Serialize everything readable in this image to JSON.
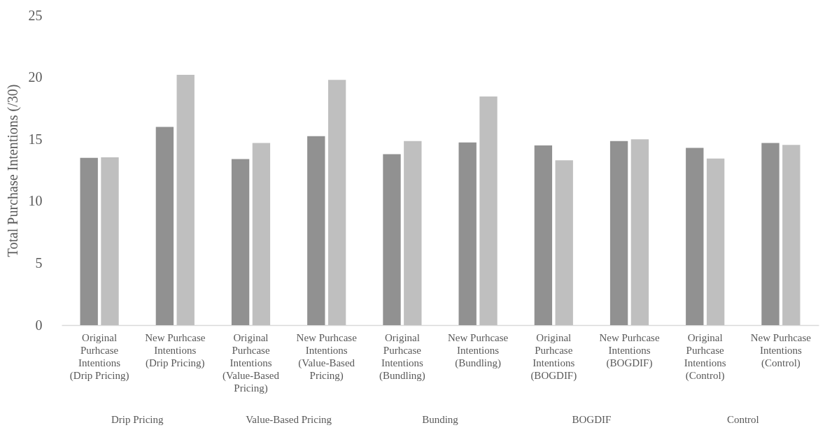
{
  "chart_data": {
    "type": "bar",
    "ylabel": "Total Purchase Intentions (/30)",
    "categories": [
      "Original Purhcase Intentions (Drip Pricing)",
      "New Purhcase Intentions (Drip Pricing)",
      "Original Purhcase Intentions (Value-Based Pricing)",
      "New Purhcase Intentions (Value-Based Pricing)",
      "Original Purhcase Intentions (Bundling)",
      "New Purhcase Intentions (Bundling)",
      "Original Purhcase Intentions (BOGDIF)",
      "New Purhcase Intentions (BOGDIF)",
      "Original Purhcase Intentions (Control)",
      "New Purhcase Intentions (Control)"
    ],
    "series": [
      {
        "color": "#919191",
        "values": [
          13.5,
          16.0,
          13.4,
          15.25,
          13.8,
          14.75,
          14.5,
          14.85,
          14.3,
          14.7
        ]
      },
      {
        "color": "#bfbfbf",
        "values": [
          13.55,
          20.2,
          14.7,
          19.8,
          14.85,
          18.45,
          13.3,
          15.0,
          13.45,
          14.55
        ]
      }
    ],
    "ylim": [
      0,
      25
    ],
    "yticks": [
      0,
      5,
      10,
      15,
      20,
      25
    ],
    "annotations": [
      "Drip Pricing",
      "Value-Based Pricing",
      "Bunding",
      "BOGDIF",
      "Control"
    ]
  }
}
